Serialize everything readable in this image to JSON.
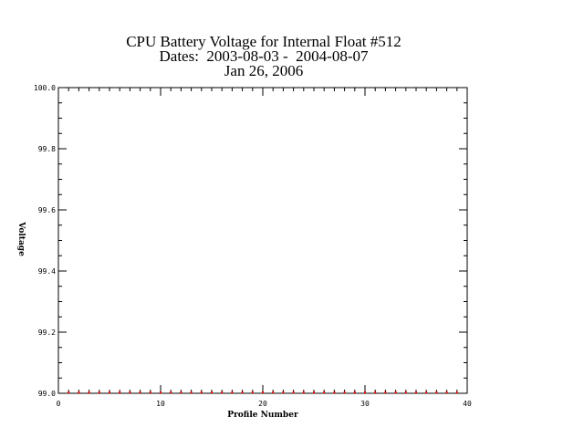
{
  "chart_data": {
    "type": "scatter",
    "title_lines": [
      "CPU Battery Voltage for Internal Float #512",
      "Dates:  2003-08-03 -  2004-08-07",
      "Jan 26, 2006"
    ],
    "xlabel": "Profile Number",
    "ylabel": "Voltage",
    "xlim": [
      0,
      40
    ],
    "ylim": [
      99.0,
      100.0
    ],
    "x_ticks": [
      "0",
      "10",
      "20",
      "30",
      "40"
    ],
    "y_ticks": [
      "99.0",
      "99.2",
      "99.4",
      "99.6",
      "99.8",
      "100.0"
    ],
    "grid": false,
    "series": [
      {
        "color": "#ff0000",
        "points": [
          [
            1,
            99.0
          ],
          [
            2,
            99.0
          ],
          [
            3,
            99.0
          ],
          [
            4,
            99.0
          ],
          [
            5,
            99.0
          ],
          [
            6,
            99.0
          ],
          [
            7,
            99.0
          ],
          [
            8,
            99.0
          ],
          [
            9,
            99.0
          ],
          [
            10,
            99.0
          ],
          [
            11,
            99.0
          ],
          [
            12,
            99.0
          ],
          [
            13,
            99.0
          ],
          [
            14,
            99.0
          ],
          [
            15,
            99.0
          ],
          [
            16,
            99.0
          ],
          [
            17,
            99.0
          ],
          [
            18,
            99.0
          ],
          [
            19,
            99.0
          ],
          [
            20,
            99.0
          ],
          [
            21,
            99.0
          ],
          [
            22,
            99.0
          ],
          [
            23,
            99.0
          ],
          [
            24,
            99.0
          ],
          [
            25,
            99.0
          ],
          [
            26,
            99.0
          ],
          [
            27,
            99.0
          ],
          [
            28,
            99.0
          ],
          [
            29,
            99.0
          ],
          [
            30,
            99.0
          ],
          [
            31,
            99.0
          ],
          [
            32,
            99.0
          ],
          [
            33,
            99.0
          ],
          [
            34,
            99.0
          ],
          [
            35,
            99.0
          ],
          [
            36,
            99.0
          ],
          [
            37,
            99.0
          ],
          [
            38,
            99.0
          ],
          [
            39,
            99.0
          ]
        ]
      }
    ]
  }
}
